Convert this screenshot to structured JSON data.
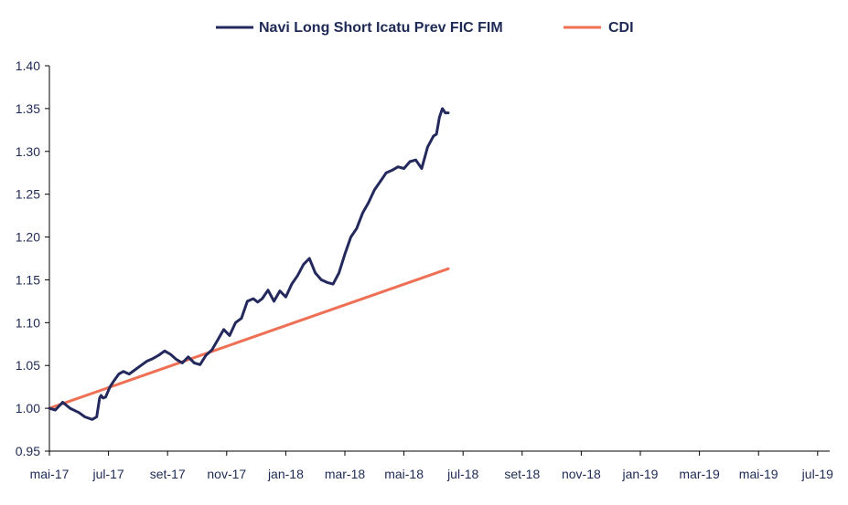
{
  "chart_data": {
    "type": "line",
    "title": "",
    "xlabel": "",
    "ylabel": "",
    "ylim": [
      0.95,
      1.4
    ],
    "yticks": [
      "0.95",
      "1.00",
      "1.05",
      "1.10",
      "1.15",
      "1.20",
      "1.25",
      "1.30",
      "1.35",
      "1.40"
    ],
    "xticks": [
      "mai-17",
      "jul-17",
      "set-17",
      "nov-17",
      "jan-18",
      "mar-18",
      "mai-18",
      "jul-18",
      "set-18",
      "nov-18",
      "jan-19",
      "mar-19",
      "mai-19",
      "jul-19"
    ],
    "grid": false,
    "legend_position": "top-center",
    "series": [
      {
        "name": "Navi Long Short Icatu Prev FIC FIM",
        "color": "#23295c",
        "x": [
          0,
          0.2,
          0.45,
          0.7,
          1.0,
          1.2,
          1.45,
          1.6,
          1.7,
          1.75,
          1.82,
          1.9,
          2.05,
          2.2,
          2.35,
          2.5,
          2.7,
          2.9,
          3.1,
          3.3,
          3.5,
          3.7,
          3.9,
          4.1,
          4.3,
          4.5,
          4.7,
          4.9,
          5.1,
          5.3,
          5.5,
          5.7,
          5.9,
          6.1,
          6.3,
          6.5,
          6.7,
          6.9,
          7.05,
          7.2,
          7.4,
          7.6,
          7.8,
          8.0,
          8.2,
          8.4,
          8.6,
          8.8,
          9.0,
          9.2,
          9.4,
          9.6,
          9.8,
          10.0,
          10.2,
          10.4,
          10.6,
          10.8,
          11.0,
          11.2,
          11.4,
          11.6,
          11.8,
          12.0,
          12.2,
          12.4,
          12.6,
          12.8,
          13.0,
          13.1,
          13.2,
          13.3,
          13.4,
          13.5
        ],
        "y": [
          1.0,
          0.998,
          1.007,
          1.0,
          0.995,
          0.99,
          0.987,
          0.99,
          1.012,
          1.015,
          1.012,
          1.013,
          1.025,
          1.033,
          1.04,
          1.043,
          1.04,
          1.045,
          1.05,
          1.055,
          1.058,
          1.062,
          1.067,
          1.063,
          1.057,
          1.053,
          1.06,
          1.053,
          1.051,
          1.062,
          1.068,
          1.08,
          1.092,
          1.085,
          1.1,
          1.105,
          1.125,
          1.128,
          1.124,
          1.128,
          1.138,
          1.125,
          1.137,
          1.13,
          1.145,
          1.155,
          1.168,
          1.175,
          1.158,
          1.15,
          1.147,
          1.145,
          1.158,
          1.18,
          1.2,
          1.21,
          1.228,
          1.24,
          1.255,
          1.265,
          1.275,
          1.278,
          1.282,
          1.28,
          1.288,
          1.29,
          1.28,
          1.305,
          1.318,
          1.32,
          1.34,
          1.35,
          1.345,
          1.345
        ]
      },
      {
        "name": "CDI",
        "color": "#ee7055",
        "x": [
          0,
          13.5
        ],
        "y": [
          1.0,
          1.163
        ]
      }
    ]
  }
}
